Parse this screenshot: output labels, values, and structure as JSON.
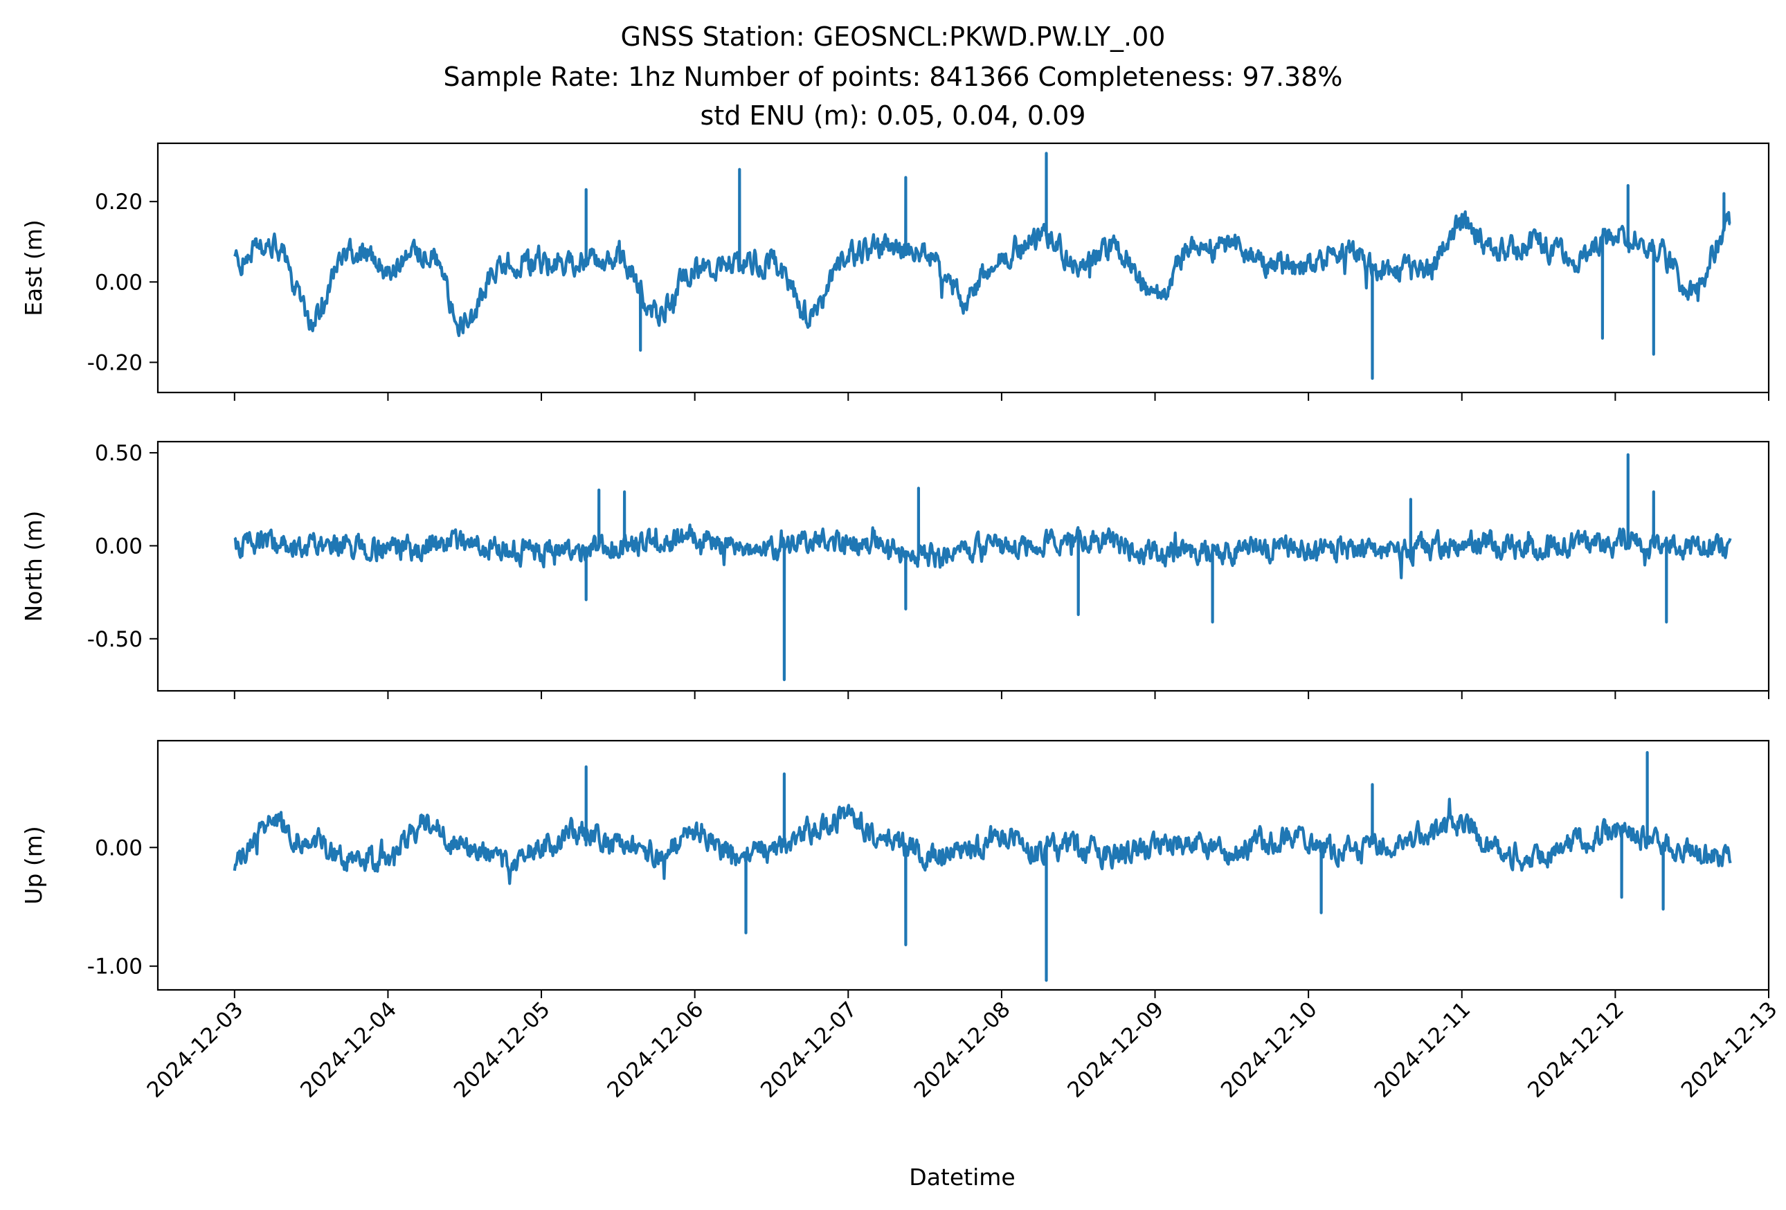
{
  "figure": {
    "title_lines": [
      "GNSS Station: GEOSNCL:PKWD.PW.LY_.00",
      "Sample Rate: 1hz   Number of points: 841366    Completeness:  97.38%",
      "std ENU (m):  0.05, 0.04, 0.09"
    ]
  },
  "chart_data": {
    "type": "line",
    "xlabel": "Datetime",
    "x_tick_labels": [
      "2024-12-03",
      "2024-12-04",
      "2024-12-05",
      "2024-12-06",
      "2024-12-07",
      "2024-12-08",
      "2024-12-09",
      "2024-12-10",
      "2024-12-11",
      "2024-12-12",
      "2024-12-13"
    ],
    "x_range": [
      "2024-12-02T12:00",
      "2024-12-13T00:00"
    ],
    "data_range": [
      "2024-12-03T00:00",
      "2024-12-12T18:00"
    ],
    "line_color": "#1f77b4",
    "grid": false,
    "legend": "none",
    "panels": [
      {
        "ylabel": "East (m)",
        "ylim": [
          -0.275,
          0.345
        ],
        "yticks": [
          0.2,
          0.0,
          -0.2
        ],
        "ytick_labels": [
          "0.20",
          "0.00",
          "-0.20"
        ],
        "trend_hours": [
          0,
          6,
          12,
          18,
          24,
          30,
          36,
          42,
          48,
          54,
          60,
          66,
          72,
          78,
          84,
          90,
          96,
          102,
          108,
          114,
          120,
          126,
          132,
          138,
          144,
          150,
          156,
          162,
          168,
          174,
          180,
          186,
          192,
          198,
          204,
          210,
          216,
          222,
          228,
          234
        ],
        "trend_values": [
          0.05,
          0.1,
          -0.09,
          0.08,
          0.04,
          0.08,
          -0.11,
          0.05,
          0.05,
          0.05,
          0.07,
          -0.08,
          0.03,
          0.05,
          0.05,
          -0.08,
          0.07,
          0.09,
          0.07,
          -0.05,
          0.07,
          0.12,
          0.05,
          0.08,
          -0.03,
          0.08,
          0.09,
          0.04,
          0.04,
          0.08,
          0.03,
          0.02,
          0.14,
          0.08,
          0.09,
          0.06,
          0.12,
          0.09,
          -0.03,
          0.14
        ],
        "spikes": [
          {
            "time": "2024-12-05 07:00",
            "value": 0.23
          },
          {
            "time": "2024-12-05 15:30",
            "value": -0.17
          },
          {
            "time": "2024-12-06 07:00",
            "value": 0.28
          },
          {
            "time": "2024-12-07 09:00",
            "value": 0.26
          },
          {
            "time": "2024-12-08 07:00",
            "value": 0.32
          },
          {
            "time": "2024-12-10 10:00",
            "value": -0.24
          },
          {
            "time": "2024-12-11 22:00",
            "value": -0.14
          },
          {
            "time": "2024-12-12 02:00",
            "value": 0.24
          },
          {
            "time": "2024-12-12 06:00",
            "value": -0.18
          },
          {
            "time": "2024-12-12 17:00",
            "value": 0.22
          }
        ]
      },
      {
        "ylabel": "North (m)",
        "ylim": [
          -0.78,
          0.56
        ],
        "yticks": [
          0.5,
          0.0,
          -0.5
        ],
        "ytick_labels": [
          "0.50",
          "0.00",
          "-0.50"
        ],
        "trend_hours": [
          0,
          12,
          24,
          36,
          48,
          60,
          72,
          84,
          96,
          108,
          120,
          132,
          144,
          156,
          168,
          180,
          192,
          204,
          216,
          234
        ],
        "trend_values": [
          0.0,
          0.01,
          -0.02,
          0.02,
          -0.03,
          0.0,
          0.04,
          -0.02,
          0.02,
          -0.04,
          -0.02,
          0.03,
          -0.03,
          -0.02,
          -0.01,
          -0.03,
          0.01,
          -0.01,
          0.02,
          -0.02
        ],
        "spikes": [
          {
            "time": "2024-12-05 09:00",
            "value": 0.3
          },
          {
            "time": "2024-12-05 13:00",
            "value": 0.29
          },
          {
            "time": "2024-12-05 07:00",
            "value": -0.29
          },
          {
            "time": "2024-12-06 14:00",
            "value": -0.72
          },
          {
            "time": "2024-12-07 11:00",
            "value": 0.31
          },
          {
            "time": "2024-12-07 09:00",
            "value": -0.34
          },
          {
            "time": "2024-12-08 12:00",
            "value": -0.37
          },
          {
            "time": "2024-12-09 09:00",
            "value": -0.41
          },
          {
            "time": "2024-12-10 16:00",
            "value": 0.25
          },
          {
            "time": "2024-12-12 02:00",
            "value": 0.49
          },
          {
            "time": "2024-12-12 06:00",
            "value": 0.29
          },
          {
            "time": "2024-12-12 08:00",
            "value": -0.41
          }
        ]
      },
      {
        "ylabel": "Up (m)",
        "ylim": [
          -1.2,
          0.9
        ],
        "yticks": [
          0.0,
          -1.0
        ],
        "ytick_labels": [
          "0.00",
          "-1.00"
        ],
        "trend_hours": [
          0,
          6,
          12,
          18,
          24,
          30,
          36,
          42,
          48,
          54,
          60,
          66,
          72,
          78,
          84,
          90,
          96,
          102,
          108,
          114,
          120,
          126,
          132,
          138,
          144,
          150,
          156,
          162,
          168,
          174,
          180,
          186,
          192,
          198,
          204,
          210,
          216,
          222,
          228,
          234
        ],
        "trend_values": [
          -0.12,
          0.2,
          0.05,
          -0.1,
          -0.08,
          0.22,
          0.0,
          -0.12,
          0.0,
          0.15,
          0.0,
          -0.05,
          0.12,
          -0.05,
          -0.02,
          0.15,
          0.25,
          0.05,
          -0.05,
          -0.02,
          0.08,
          -0.02,
          0.0,
          -0.08,
          0.0,
          0.05,
          -0.05,
          0.05,
          0.05,
          -0.02,
          0.05,
          0.1,
          0.2,
          -0.05,
          -0.1,
          0.05,
          0.15,
          0.05,
          -0.05,
          -0.1
        ],
        "spikes": [
          {
            "time": "2024-12-05 07:00",
            "value": 0.68
          },
          {
            "time": "2024-12-06 08:00",
            "value": -0.72
          },
          {
            "time": "2024-12-06 14:00",
            "value": 0.62
          },
          {
            "time": "2024-12-07 09:00",
            "value": -0.82
          },
          {
            "time": "2024-12-08 07:00",
            "value": -1.12
          },
          {
            "time": "2024-12-10 02:00",
            "value": -0.55
          },
          {
            "time": "2024-12-10 10:00",
            "value": 0.53
          },
          {
            "time": "2024-12-12 01:00",
            "value": -0.42
          },
          {
            "time": "2024-12-12 05:00",
            "value": 0.8
          },
          {
            "time": "2024-12-12 07:30",
            "value": -0.52
          }
        ]
      }
    ]
  }
}
